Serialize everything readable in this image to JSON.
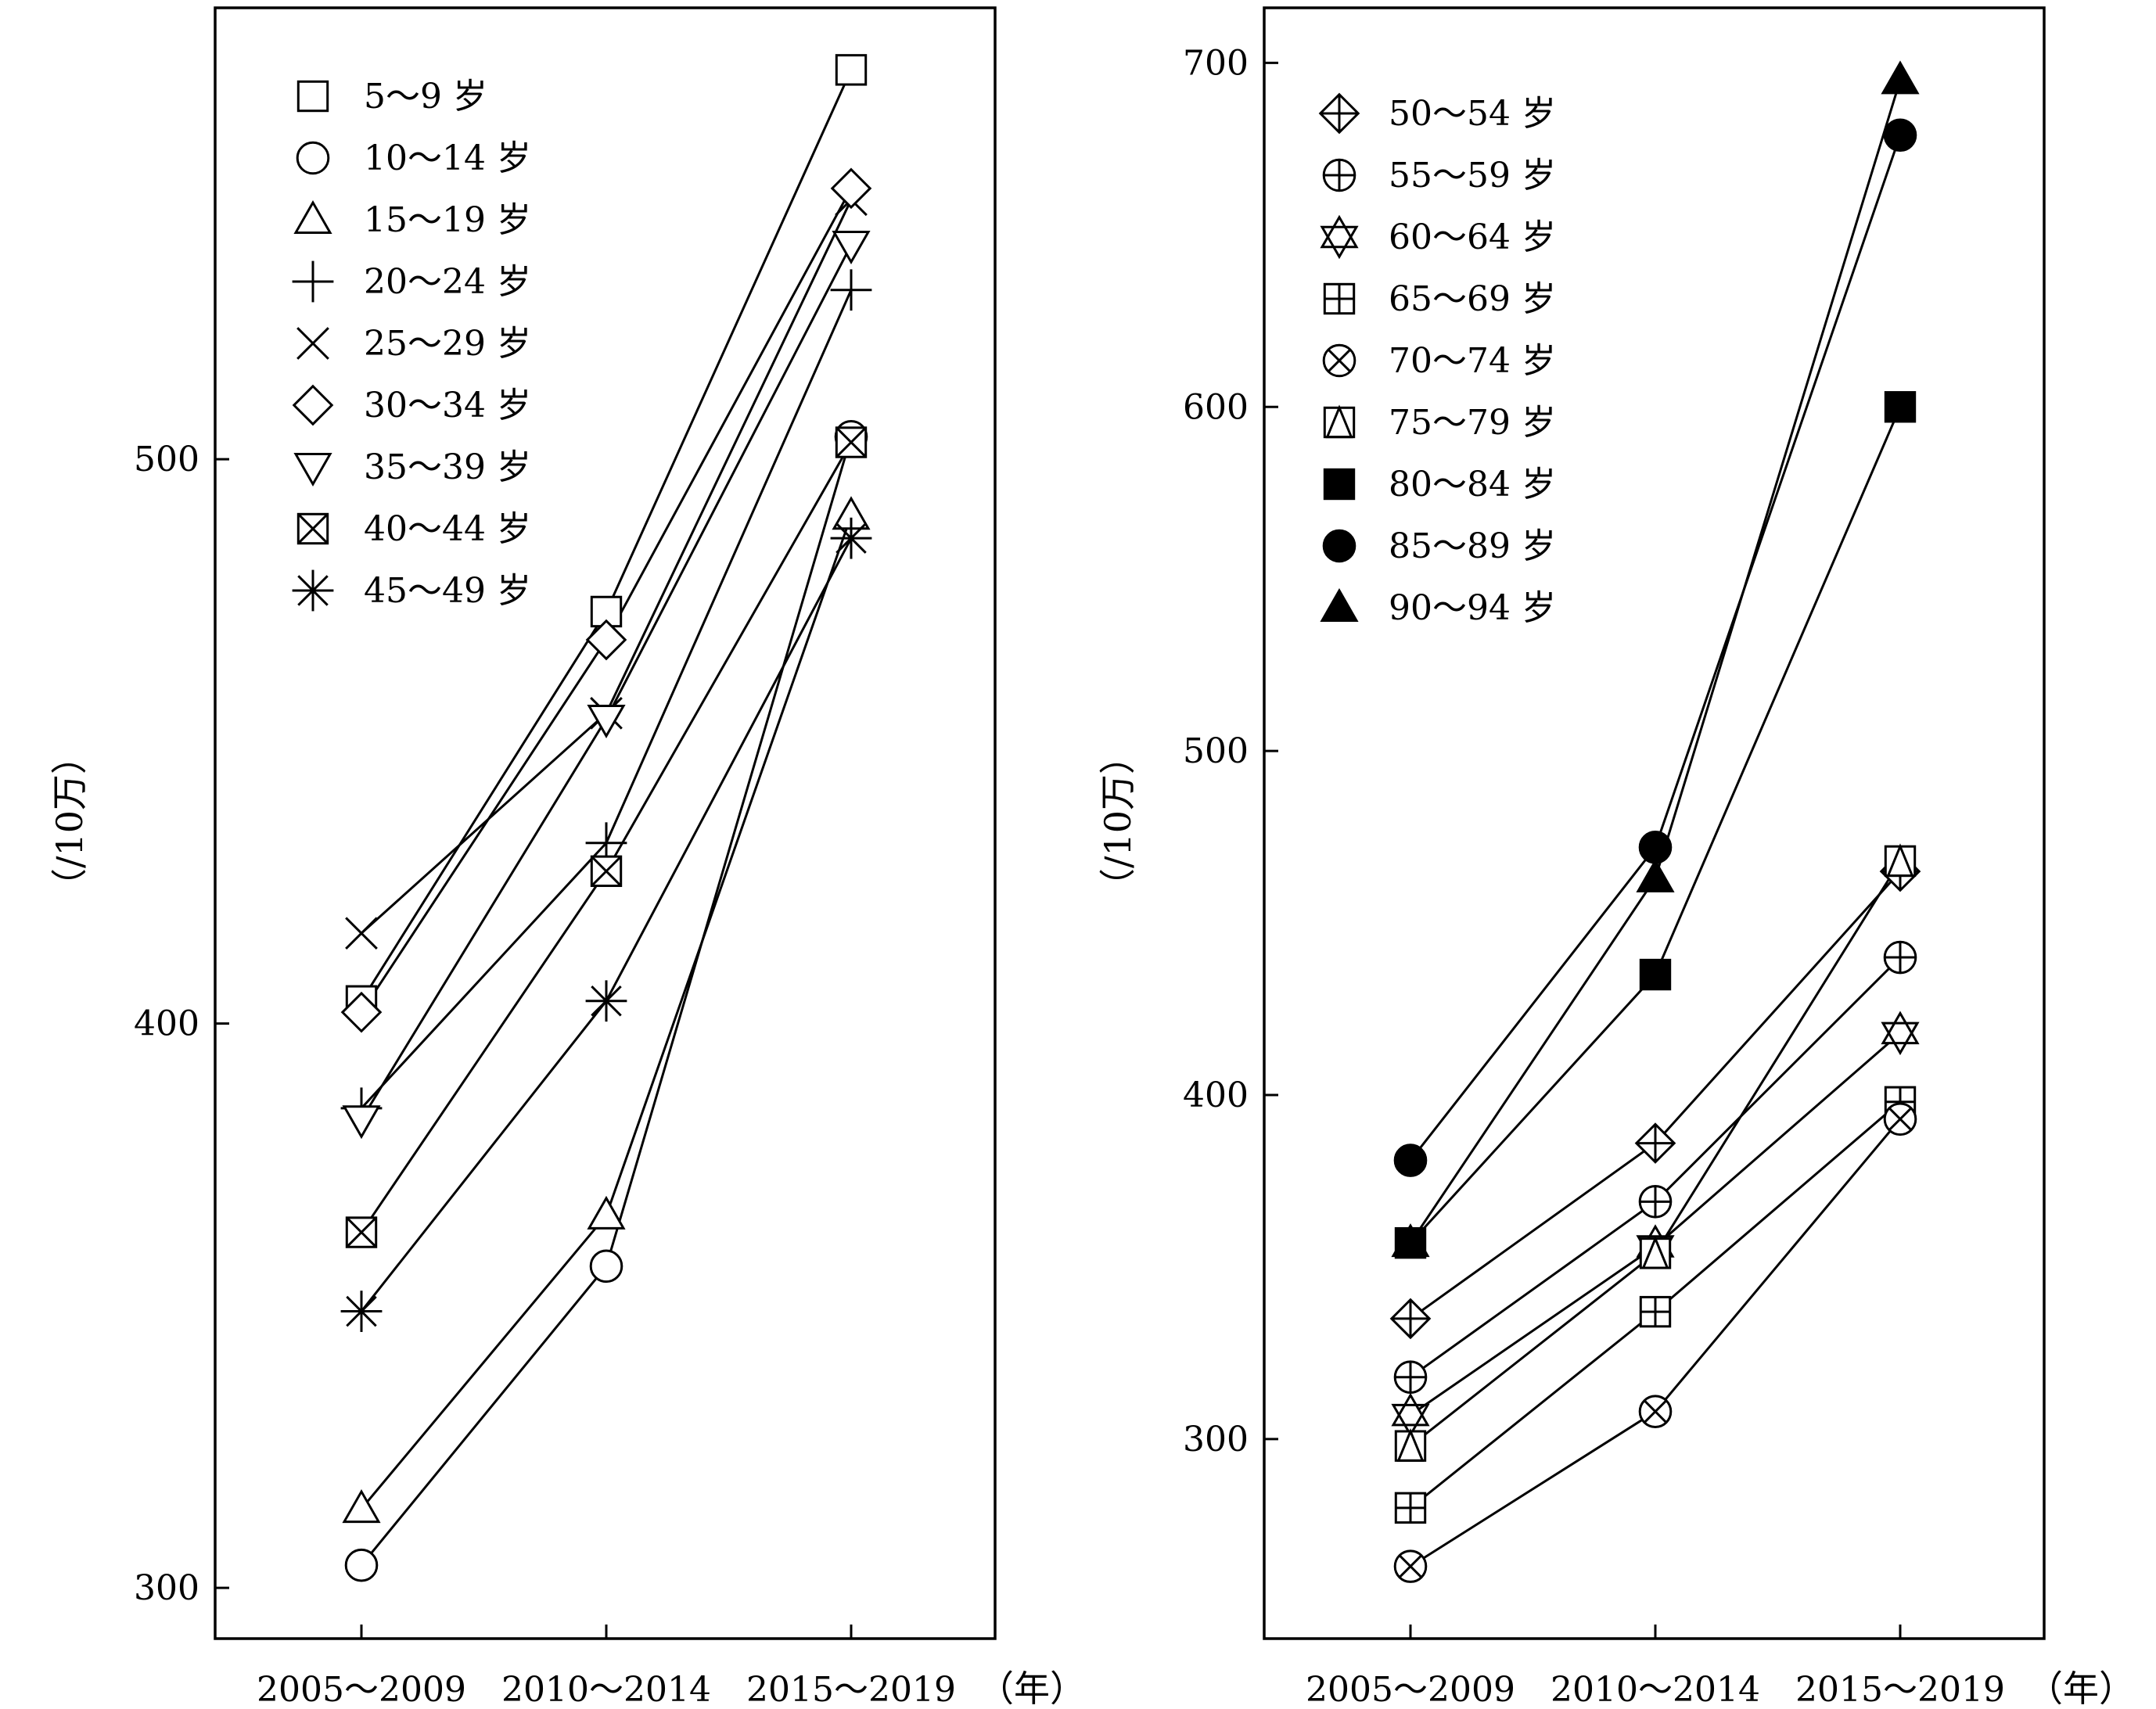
{
  "chart_data": [
    {
      "type": "line",
      "ylabel": "（/10万）",
      "x_unit": "（年）",
      "categories": [
        "2005～2009",
        "2010～2014",
        "2015～2019"
      ],
      "yticks": [
        300,
        400,
        500
      ],
      "ylim": [
        291,
        580
      ],
      "grid": false,
      "legend_position": "top-left",
      "series": [
        {
          "name": "5～9 岁",
          "marker": "square",
          "values": [
            404,
            473,
            569
          ]
        },
        {
          "name": "10～14 岁",
          "marker": "circle",
          "values": [
            304,
            357,
            504
          ]
        },
        {
          "name": "15～19 岁",
          "marker": "triangle",
          "values": [
            314,
            366,
            490
          ]
        },
        {
          "name": "20～24 岁",
          "marker": "plus",
          "values": [
            385,
            432,
            530
          ]
        },
        {
          "name": "25～29 岁",
          "marker": "x",
          "values": [
            416,
            455,
            546
          ]
        },
        {
          "name": "30～34 岁",
          "marker": "diamond",
          "values": [
            402,
            468,
            548
          ]
        },
        {
          "name": "35～39 岁",
          "marker": "triangle-down",
          "values": [
            383,
            454,
            538
          ]
        },
        {
          "name": "40～44 岁",
          "marker": "square-x",
          "values": [
            363,
            427,
            503
          ]
        },
        {
          "name": "45～49 岁",
          "marker": "asterisk",
          "values": [
            349,
            404,
            486
          ]
        }
      ]
    },
    {
      "type": "line",
      "ylabel": "（/10万）",
      "x_unit": "（年）",
      "categories": [
        "2005～2009",
        "2010～2014",
        "2015～2019"
      ],
      "yticks": [
        300,
        400,
        500,
        600,
        700
      ],
      "ylim": [
        242,
        716
      ],
      "grid": false,
      "legend_position": "top-left",
      "series": [
        {
          "name": "50～54 岁",
          "marker": "diamond-plus",
          "values": [
            335,
            386,
            465
          ]
        },
        {
          "name": "55～59 岁",
          "marker": "circle-plus",
          "values": [
            318,
            369,
            440
          ]
        },
        {
          "name": "60～64 岁",
          "marker": "hexagram",
          "values": [
            307,
            356,
            418
          ]
        },
        {
          "name": "65～69 岁",
          "marker": "square-plus",
          "values": [
            280,
            337,
            398
          ]
        },
        {
          "name": "70～74 岁",
          "marker": "circle-x",
          "values": [
            263,
            308,
            393
          ]
        },
        {
          "name": "75～79 岁",
          "marker": "square-triangle",
          "values": [
            298,
            354,
            468
          ]
        },
        {
          "name": "80～84 岁",
          "marker": "filled-square",
          "values": [
            357,
            435,
            600
          ]
        },
        {
          "name": "85～89 岁",
          "marker": "filled-circle",
          "values": [
            381,
            472,
            679
          ]
        },
        {
          "name": "90～94 岁",
          "marker": "filled-triangle",
          "values": [
            357,
            463,
            695
          ]
        }
      ]
    }
  ]
}
